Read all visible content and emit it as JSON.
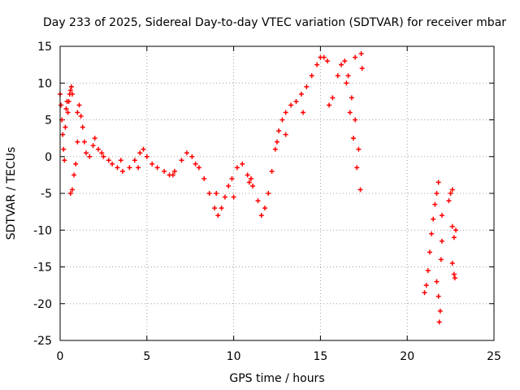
{
  "chart_data": {
    "type": "scatter",
    "title": "Day 233 of 2025, Sidereal Day-to-day VTEC variation (SDTVAR) for receiver mbar",
    "xlabel": "GPS time / hours",
    "ylabel": "SDTVAR / TECUs",
    "xlim": [
      0,
      25
    ],
    "ylim": [
      -25,
      15
    ],
    "x_ticks": [
      "0",
      "5",
      "10",
      "15",
      "20",
      "25"
    ],
    "y_ticks": [
      "15",
      "10",
      "5",
      "0",
      "-5",
      "-10",
      "-15",
      "-20",
      "-25"
    ],
    "grid": true,
    "marker": "+",
    "colors": {
      "series": "#ff0000"
    },
    "series": [
      {
        "points": [
          [
            0.0,
            8.5
          ],
          [
            0.05,
            7.0
          ],
          [
            0.1,
            5.0
          ],
          [
            0.15,
            3.0
          ],
          [
            0.2,
            1.0
          ],
          [
            0.25,
            -0.5
          ],
          [
            0.3,
            4.0
          ],
          [
            0.35,
            6.5
          ],
          [
            0.4,
            7.5
          ],
          [
            0.45,
            6.0
          ],
          [
            0.5,
            7.5
          ],
          [
            0.55,
            8.5
          ],
          [
            0.6,
            9.0
          ],
          [
            0.65,
            9.5
          ],
          [
            0.7,
            8.5
          ],
          [
            0.6,
            -5.0
          ],
          [
            0.7,
            -4.5
          ],
          [
            0.8,
            -2.5
          ],
          [
            0.9,
            -1.0
          ],
          [
            1.0,
            2.0
          ],
          [
            1.0,
            6.0
          ],
          [
            1.1,
            7.0
          ],
          [
            1.2,
            5.5
          ],
          [
            1.3,
            4.0
          ],
          [
            1.4,
            2.0
          ],
          [
            1.5,
            0.5
          ],
          [
            1.7,
            0.0
          ],
          [
            1.9,
            1.5
          ],
          [
            2.0,
            2.5
          ],
          [
            2.2,
            1.0
          ],
          [
            2.5,
            0.0
          ],
          [
            2.8,
            -0.5
          ],
          [
            3.0,
            -1.0
          ],
          [
            3.3,
            -1.5
          ],
          [
            3.6,
            -2.0
          ],
          [
            4.0,
            -1.5
          ],
          [
            4.3,
            -0.5
          ],
          [
            4.6,
            0.5
          ],
          [
            4.8,
            1.0
          ],
          [
            5.0,
            0.0
          ],
          [
            5.3,
            -1.0
          ],
          [
            5.6,
            -1.5
          ],
          [
            6.0,
            -2.0
          ],
          [
            6.3,
            -2.5
          ],
          [
            6.6,
            -2.0
          ],
          [
            7.0,
            -0.5
          ],
          [
            7.3,
            0.5
          ],
          [
            7.6,
            0.0
          ],
          [
            8.0,
            -1.5
          ],
          [
            8.3,
            -3.0
          ],
          [
            8.6,
            -5.0
          ],
          [
            8.9,
            -7.0
          ],
          [
            9.1,
            -8.0
          ],
          [
            9.3,
            -7.0
          ],
          [
            9.5,
            -5.5
          ],
          [
            9.7,
            -4.0
          ],
          [
            9.9,
            -3.0
          ],
          [
            10.2,
            -1.5
          ],
          [
            10.5,
            -1.0
          ],
          [
            10.8,
            -2.5
          ],
          [
            11.1,
            -4.0
          ],
          [
            11.4,
            -6.0
          ],
          [
            11.6,
            -8.0
          ],
          [
            11.8,
            -7.0
          ],
          [
            12.0,
            -5.0
          ],
          [
            12.2,
            -2.0
          ],
          [
            12.4,
            1.0
          ],
          [
            12.6,
            3.5
          ],
          [
            12.8,
            5.0
          ],
          [
            13.0,
            6.0
          ],
          [
            13.3,
            7.0
          ],
          [
            13.6,
            7.5
          ],
          [
            13.9,
            8.5
          ],
          [
            14.2,
            9.5
          ],
          [
            14.5,
            11.0
          ],
          [
            14.8,
            12.5
          ],
          [
            15.0,
            13.5
          ],
          [
            15.2,
            13.5
          ],
          [
            15.4,
            13.0
          ],
          [
            15.5,
            7.0
          ],
          [
            15.7,
            8.0
          ],
          [
            16.0,
            11.0
          ],
          [
            16.2,
            12.5
          ],
          [
            16.4,
            13.0
          ],
          [
            16.6,
            11.0
          ],
          [
            16.8,
            8.0
          ],
          [
            17.0,
            5.0
          ],
          [
            17.2,
            1.0
          ],
          [
            17.3,
            -4.5
          ],
          [
            17.4,
            12.0
          ],
          [
            16.5,
            10.0
          ],
          [
            16.7,
            6.0
          ],
          [
            16.9,
            2.5
          ],
          [
            17.1,
            -1.5
          ],
          [
            17.35,
            14.0
          ],
          [
            17.0,
            13.5
          ],
          [
            13.0,
            3.0
          ],
          [
            12.5,
            2.0
          ],
          [
            11.0,
            -3.0
          ],
          [
            10.0,
            -5.5
          ],
          [
            9.0,
            -5.0
          ],
          [
            2.4,
            0.5
          ],
          [
            3.5,
            -0.5
          ],
          [
            4.5,
            -1.5
          ],
          [
            6.5,
            -2.5
          ],
          [
            7.8,
            -1.0
          ],
          [
            10.9,
            -3.5
          ],
          [
            14.0,
            6.0
          ],
          [
            21.0,
            -18.5
          ],
          [
            21.1,
            -17.5
          ],
          [
            21.2,
            -15.5
          ],
          [
            21.3,
            -13.0
          ],
          [
            21.4,
            -10.5
          ],
          [
            21.5,
            -8.5
          ],
          [
            21.6,
            -6.5
          ],
          [
            21.7,
            -5.0
          ],
          [
            21.8,
            -3.5
          ],
          [
            21.7,
            -17.0
          ],
          [
            21.8,
            -19.0
          ],
          [
            21.9,
            -21.0
          ],
          [
            21.85,
            -22.5
          ],
          [
            21.95,
            -14.0
          ],
          [
            22.0,
            -11.5
          ],
          [
            22.0,
            -8.0
          ],
          [
            22.4,
            -6.0
          ],
          [
            22.5,
            -5.0
          ],
          [
            22.6,
            -4.5
          ],
          [
            22.6,
            -9.5
          ],
          [
            22.7,
            -11.0
          ],
          [
            22.8,
            -10.0
          ],
          [
            22.6,
            -14.5
          ],
          [
            22.7,
            -16.0
          ],
          [
            22.75,
            -16.5
          ]
        ]
      }
    ]
  }
}
